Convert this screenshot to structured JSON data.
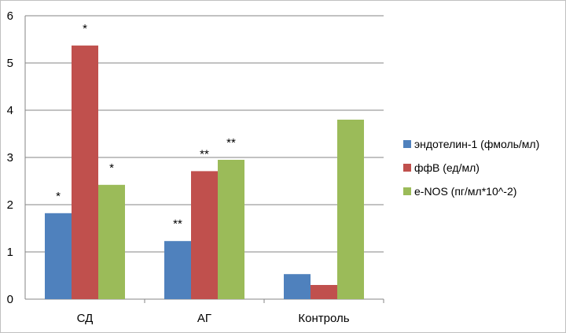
{
  "chart_data": {
    "type": "bar",
    "categories": [
      "СД",
      "АГ",
      "Контроль"
    ],
    "series": [
      {
        "name": "эндотелин-1 (фмоль/мл)",
        "color": "#4F81BD",
        "values": [
          1.82,
          1.23,
          0.53
        ],
        "labels": [
          "*",
          "**",
          ""
        ]
      },
      {
        "name": "ффВ (ед/мл)",
        "color": "#C0504D",
        "values": [
          5.37,
          2.71,
          0.3
        ],
        "labels": [
          "*",
          "**",
          ""
        ]
      },
      {
        "name": "e-NOS (пг/мл*10^-2)",
        "color": "#9BBB59",
        "values": [
          2.42,
          2.95,
          3.8
        ],
        "labels": [
          "*",
          "**",
          ""
        ]
      }
    ],
    "ylim": [
      0,
      6
    ],
    "yticks": [
      "0",
      "1",
      "2",
      "3",
      "4",
      "5",
      "6"
    ],
    "grid": true,
    "legend": "right",
    "title": "",
    "xlabel": "",
    "ylabel": ""
  }
}
